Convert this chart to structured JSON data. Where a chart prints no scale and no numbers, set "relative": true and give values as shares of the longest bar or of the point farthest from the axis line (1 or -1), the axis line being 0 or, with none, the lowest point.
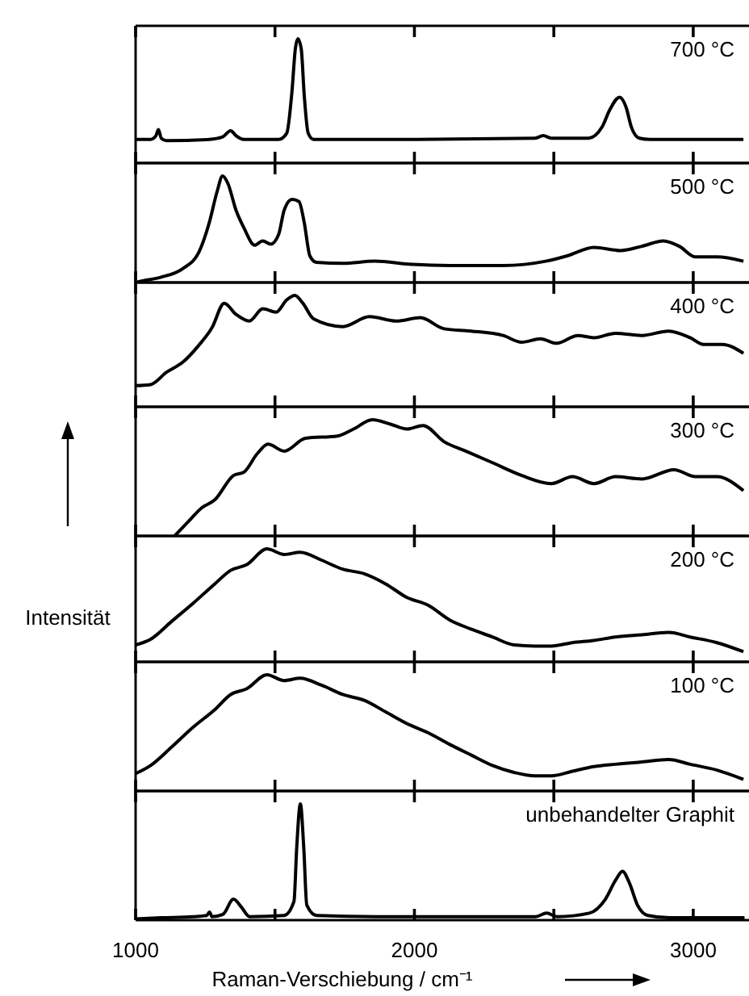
{
  "chart_data": [
    {
      "type": "line",
      "title": "700 °C",
      "relative": true,
      "xlim": [
        1000,
        3200
      ],
      "xticks": [
        1000,
        1500,
        2000,
        2500,
        3000
      ],
      "tick_labels": false,
      "series": [
        {
          "color": "#000000",
          "x": [
            1000,
            1054,
            1073,
            1082,
            1092,
            1111,
            1264,
            1312,
            1341,
            1360,
            1389,
            1513,
            1542,
            1561,
            1573,
            1582,
            1594,
            1605,
            1619,
            1638,
            1935,
            2433,
            2462,
            2491,
            2625,
            2673,
            2701,
            2736,
            2759,
            2778,
            2807,
            2845,
            3180
          ],
          "values": [
            0.19,
            0.19,
            0.22,
            0.27,
            0.2,
            0.18,
            0.19,
            0.21,
            0.26,
            0.22,
            0.19,
            0.19,
            0.24,
            0.58,
            0.92,
            1,
            0.92,
            0.54,
            0.24,
            0.19,
            0.19,
            0.2,
            0.22,
            0.2,
            0.2,
            0.29,
            0.43,
            0.53,
            0.45,
            0.29,
            0.2,
            0.19,
            0.19
          ]
        }
      ]
    },
    {
      "type": "line",
      "title": "500 °C",
      "relative": true,
      "xlim": [
        1000,
        3200
      ],
      "xticks": [
        1000,
        1500,
        2000,
        2500,
        3000
      ],
      "tick_labels": false,
      "series": [
        {
          "color": "#000000",
          "x": [
            1000,
            1015,
            1092,
            1169,
            1226,
            1264,
            1293,
            1312,
            1331,
            1360,
            1389,
            1427,
            1456,
            1485,
            1513,
            1533,
            1561,
            1586,
            1605,
            1625,
            1648,
            1743,
            1858,
            1992,
            2127,
            2318,
            2471,
            2548,
            2644,
            2740,
            2816,
            2893,
            2950,
            3008,
            3085,
            3180
          ],
          "values": [
            0,
            0.01,
            0.05,
            0.13,
            0.28,
            0.56,
            0.86,
            1,
            0.93,
            0.68,
            0.51,
            0.35,
            0.39,
            0.36,
            0.45,
            0.68,
            0.78,
            0.76,
            0.56,
            0.25,
            0.19,
            0.18,
            0.2,
            0.17,
            0.16,
            0.16,
            0.2,
            0.25,
            0.33,
            0.3,
            0.34,
            0.39,
            0.34,
            0.24,
            0.24,
            0.2
          ]
        }
      ]
    },
    {
      "type": "line",
      "title": "400 °C",
      "relative": true,
      "xlim": [
        1000,
        3200
      ],
      "xticks": [
        1000,
        1500,
        2000,
        2500,
        3000
      ],
      "tick_labels": false,
      "series": [
        {
          "color": "#000000",
          "x": [
            1000,
            1054,
            1111,
            1169,
            1226,
            1274,
            1318,
            1360,
            1408,
            1456,
            1504,
            1542,
            1571,
            1600,
            1638,
            1743,
            1839,
            1935,
            2021,
            2107,
            2203,
            2318,
            2385,
            2452,
            2510,
            2586,
            2644,
            2721,
            2816,
            2912,
            2989,
            3037,
            3104,
            3180
          ],
          "values": [
            0.19,
            0.2,
            0.31,
            0.4,
            0.55,
            0.71,
            0.93,
            0.83,
            0.77,
            0.88,
            0.85,
            0.96,
            1,
            0.93,
            0.79,
            0.72,
            0.81,
            0.77,
            0.8,
            0.7,
            0.68,
            0.64,
            0.58,
            0.61,
            0.57,
            0.64,
            0.62,
            0.66,
            0.64,
            0.68,
            0.62,
            0.56,
            0.56,
            0.48
          ]
        }
      ]
    },
    {
      "type": "line",
      "title": "300 °C",
      "relative": true,
      "xlim": [
        1000,
        3200
      ],
      "xticks": [
        1000,
        1500,
        2000,
        2500,
        3000
      ],
      "tick_labels": false,
      "series": [
        {
          "color": "#000000",
          "x": [
            1140,
            1188,
            1236,
            1284,
            1351,
            1389,
            1437,
            1475,
            1533,
            1609,
            1724,
            1782,
            1849,
            1916,
            1973,
            2031,
            2107,
            2184,
            2280,
            2385,
            2491,
            2567,
            2644,
            2721,
            2816,
            2931,
            3008,
            3085,
            3180
          ],
          "values": [
            0,
            0.12,
            0.24,
            0.31,
            0.52,
            0.55,
            0.71,
            0.79,
            0.73,
            0.84,
            0.86,
            0.92,
            1,
            0.96,
            0.92,
            0.95,
            0.81,
            0.73,
            0.63,
            0.52,
            0.45,
            0.51,
            0.45,
            0.51,
            0.49,
            0.57,
            0.51,
            0.51,
            0.39
          ]
        }
      ]
    },
    {
      "type": "line",
      "title": "200 °C",
      "ylabel": "Intensität",
      "relative": true,
      "xlim": [
        1000,
        3200
      ],
      "xticks": [
        1000,
        1500,
        2000,
        2500,
        3000
      ],
      "tick_labels": false,
      "series": [
        {
          "color": "#000000",
          "x": [
            1000,
            1054,
            1130,
            1207,
            1284,
            1341,
            1399,
            1471,
            1533,
            1590,
            1667,
            1743,
            1820,
            1897,
            1973,
            2050,
            2127,
            2203,
            2280,
            2357,
            2433,
            2491,
            2567,
            2644,
            2721,
            2816,
            2912,
            2989,
            3085,
            3180
          ],
          "values": [
            0.15,
            0.2,
            0.36,
            0.52,
            0.69,
            0.81,
            0.86,
            1,
            0.95,
            0.97,
            0.9,
            0.82,
            0.78,
            0.69,
            0.57,
            0.5,
            0.37,
            0.29,
            0.22,
            0.15,
            0.14,
            0.14,
            0.17,
            0.19,
            0.22,
            0.24,
            0.26,
            0.22,
            0.17,
            0.09
          ]
        }
      ]
    },
    {
      "type": "line",
      "title": "100 °C",
      "relative": true,
      "xlim": [
        1000,
        3200
      ],
      "xticks": [
        1000,
        1500,
        2000,
        2500,
        3000
      ],
      "tick_labels": false,
      "series": [
        {
          "color": "#000000",
          "x": [
            1000,
            1054,
            1130,
            1207,
            1284,
            1341,
            1399,
            1471,
            1533,
            1590,
            1667,
            1743,
            1820,
            1897,
            1973,
            2050,
            2127,
            2203,
            2280,
            2357,
            2433,
            2491,
            2567,
            2644,
            2721,
            2816,
            2912,
            2989,
            3085,
            3180
          ],
          "values": [
            0.15,
            0.22,
            0.38,
            0.55,
            0.7,
            0.83,
            0.88,
            1,
            0.95,
            0.97,
            0.91,
            0.83,
            0.78,
            0.68,
            0.58,
            0.5,
            0.4,
            0.31,
            0.22,
            0.16,
            0.13,
            0.13,
            0.17,
            0.21,
            0.23,
            0.25,
            0.27,
            0.23,
            0.18,
            0.1
          ]
        }
      ]
    },
    {
      "type": "line",
      "title": "unbehandelter Graphit",
      "xlabel": "Raman-Verschiebung / cm⁻¹",
      "relative": true,
      "xlim": [
        1000,
        3200
      ],
      "xticks": [
        1000,
        {
          "value": 1500,
          "label": null
        },
        2000,
        {
          "value": 2500,
          "label": null
        },
        3000
      ],
      "tick_labels": "x",
      "series": [
        {
          "color": "#000000",
          "x": [
            1000,
            1092,
            1207,
            1255,
            1265,
            1274,
            1313,
            1351,
            1380,
            1409,
            1533,
            1568,
            1578,
            1591,
            1603,
            1614,
            1649,
            1860,
            2244,
            2435,
            2474,
            2512,
            2627,
            2685,
            2723,
            2746,
            2771,
            2800,
            2838,
            2915,
            3184
          ],
          "values": [
            0.01,
            0.02,
            0.03,
            0.04,
            0.07,
            0.03,
            0.05,
            0.18,
            0.11,
            0.03,
            0.04,
            0.16,
            0.63,
            1,
            0.63,
            0.13,
            0.04,
            0.03,
            0.03,
            0.03,
            0.06,
            0.03,
            0.06,
            0.18,
            0.35,
            0.42,
            0.32,
            0.13,
            0.04,
            0.02,
            0.02
          ]
        }
      ]
    }
  ]
}
